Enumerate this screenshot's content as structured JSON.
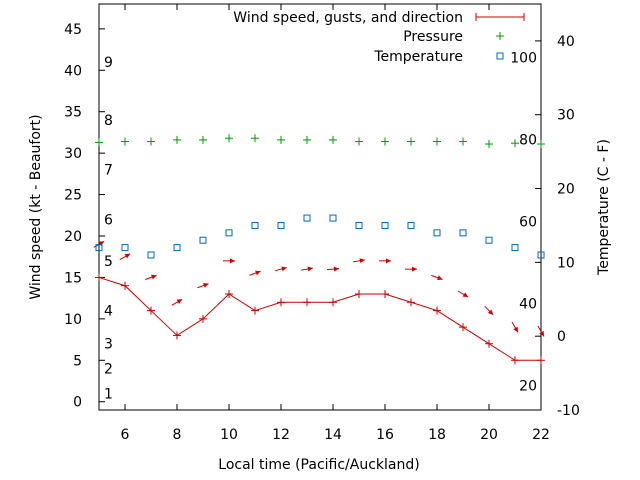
{
  "chart_data": {
    "type": "line",
    "xlabel": "Local time (Pacific/Auckland)",
    "ylabel": "Wind speed (kt - Beaufort)",
    "y2label": "Temperature (C - F)",
    "xlim": [
      5,
      22
    ],
    "ylim": [
      -1,
      48
    ],
    "y2lim": [
      -10,
      45
    ],
    "x_ticks": [
      "6",
      "8",
      "10",
      "12",
      "14",
      "16",
      "18",
      "20",
      "22"
    ],
    "y_ticks": [
      "0",
      "5",
      "10",
      "15",
      "20",
      "25",
      "30",
      "35",
      "40",
      "45"
    ],
    "y2_ticks": [
      "-10",
      "0",
      "10",
      "20",
      "30",
      "40"
    ],
    "beaufort_labels": [
      {
        "label": "1",
        "kt": 1
      },
      {
        "label": "2",
        "kt": 4
      },
      {
        "label": "3",
        "kt": 7
      },
      {
        "label": "4",
        "kt": 11
      },
      {
        "label": "5",
        "kt": 17
      },
      {
        "label": "6",
        "kt": 22
      },
      {
        "label": "7",
        "kt": 28
      },
      {
        "label": "8",
        "kt": 34
      },
      {
        "label": "9",
        "kt": 41
      }
    ],
    "fahrenheit_labels": [
      {
        "label": "20",
        "c": -6.67
      },
      {
        "label": "40",
        "c": 4.44
      },
      {
        "label": "60",
        "c": 15.56
      },
      {
        "label": "80",
        "c": 26.67
      },
      {
        "label": "100",
        "c": 37.78
      }
    ],
    "legend": {
      "position": "top-right",
      "entries": [
        "Wind speed, gusts, and direction",
        "Pressure",
        "Temperature"
      ]
    },
    "series": [
      {
        "name": "Wind speed, gusts, and direction",
        "color": "#cc0000",
        "x": [
          5,
          6,
          7,
          8,
          9,
          10,
          11,
          12,
          13,
          14,
          15,
          16,
          17,
          18,
          19,
          20,
          21,
          22
        ],
        "values": [
          15,
          14,
          11,
          8,
          10,
          13,
          11,
          12,
          12,
          12,
          13,
          13,
          12,
          11,
          9,
          7,
          5,
          5
        ],
        "arrow_y": [
          19,
          17.5,
          15,
          12,
          14,
          17,
          15.5,
          16,
          16,
          16,
          17,
          17,
          16,
          15,
          13,
          11,
          9,
          8.5
        ],
        "arrow_dir_deg": [
          -30,
          -30,
          -20,
          -30,
          -20,
          0,
          -20,
          -15,
          -10,
          -5,
          -10,
          0,
          0,
          20,
          30,
          45,
          60,
          60
        ]
      },
      {
        "name": "Pressure",
        "color": "#009900",
        "x": [
          5,
          6,
          7,
          8,
          9,
          10,
          11,
          12,
          13,
          14,
          15,
          16,
          17,
          18,
          19,
          20,
          21,
          22
        ],
        "values": [
          31.3,
          31.4,
          31.4,
          31.6,
          31.6,
          31.8,
          31.8,
          31.6,
          31.6,
          31.6,
          31.4,
          31.4,
          31.4,
          31.4,
          31.4,
          31.1,
          31.2,
          31.1
        ]
      },
      {
        "name": "Temperature",
        "color": "#0066cc",
        "axis": "y2",
        "x": [
          5,
          6,
          7,
          8,
          9,
          10,
          11,
          12,
          13,
          14,
          15,
          16,
          17,
          18,
          19,
          20,
          21,
          22
        ],
        "values": [
          12,
          12,
          11,
          12,
          13,
          14,
          15,
          15,
          16,
          16,
          15,
          15,
          15,
          14,
          14,
          13,
          12,
          11
        ]
      }
    ]
  }
}
